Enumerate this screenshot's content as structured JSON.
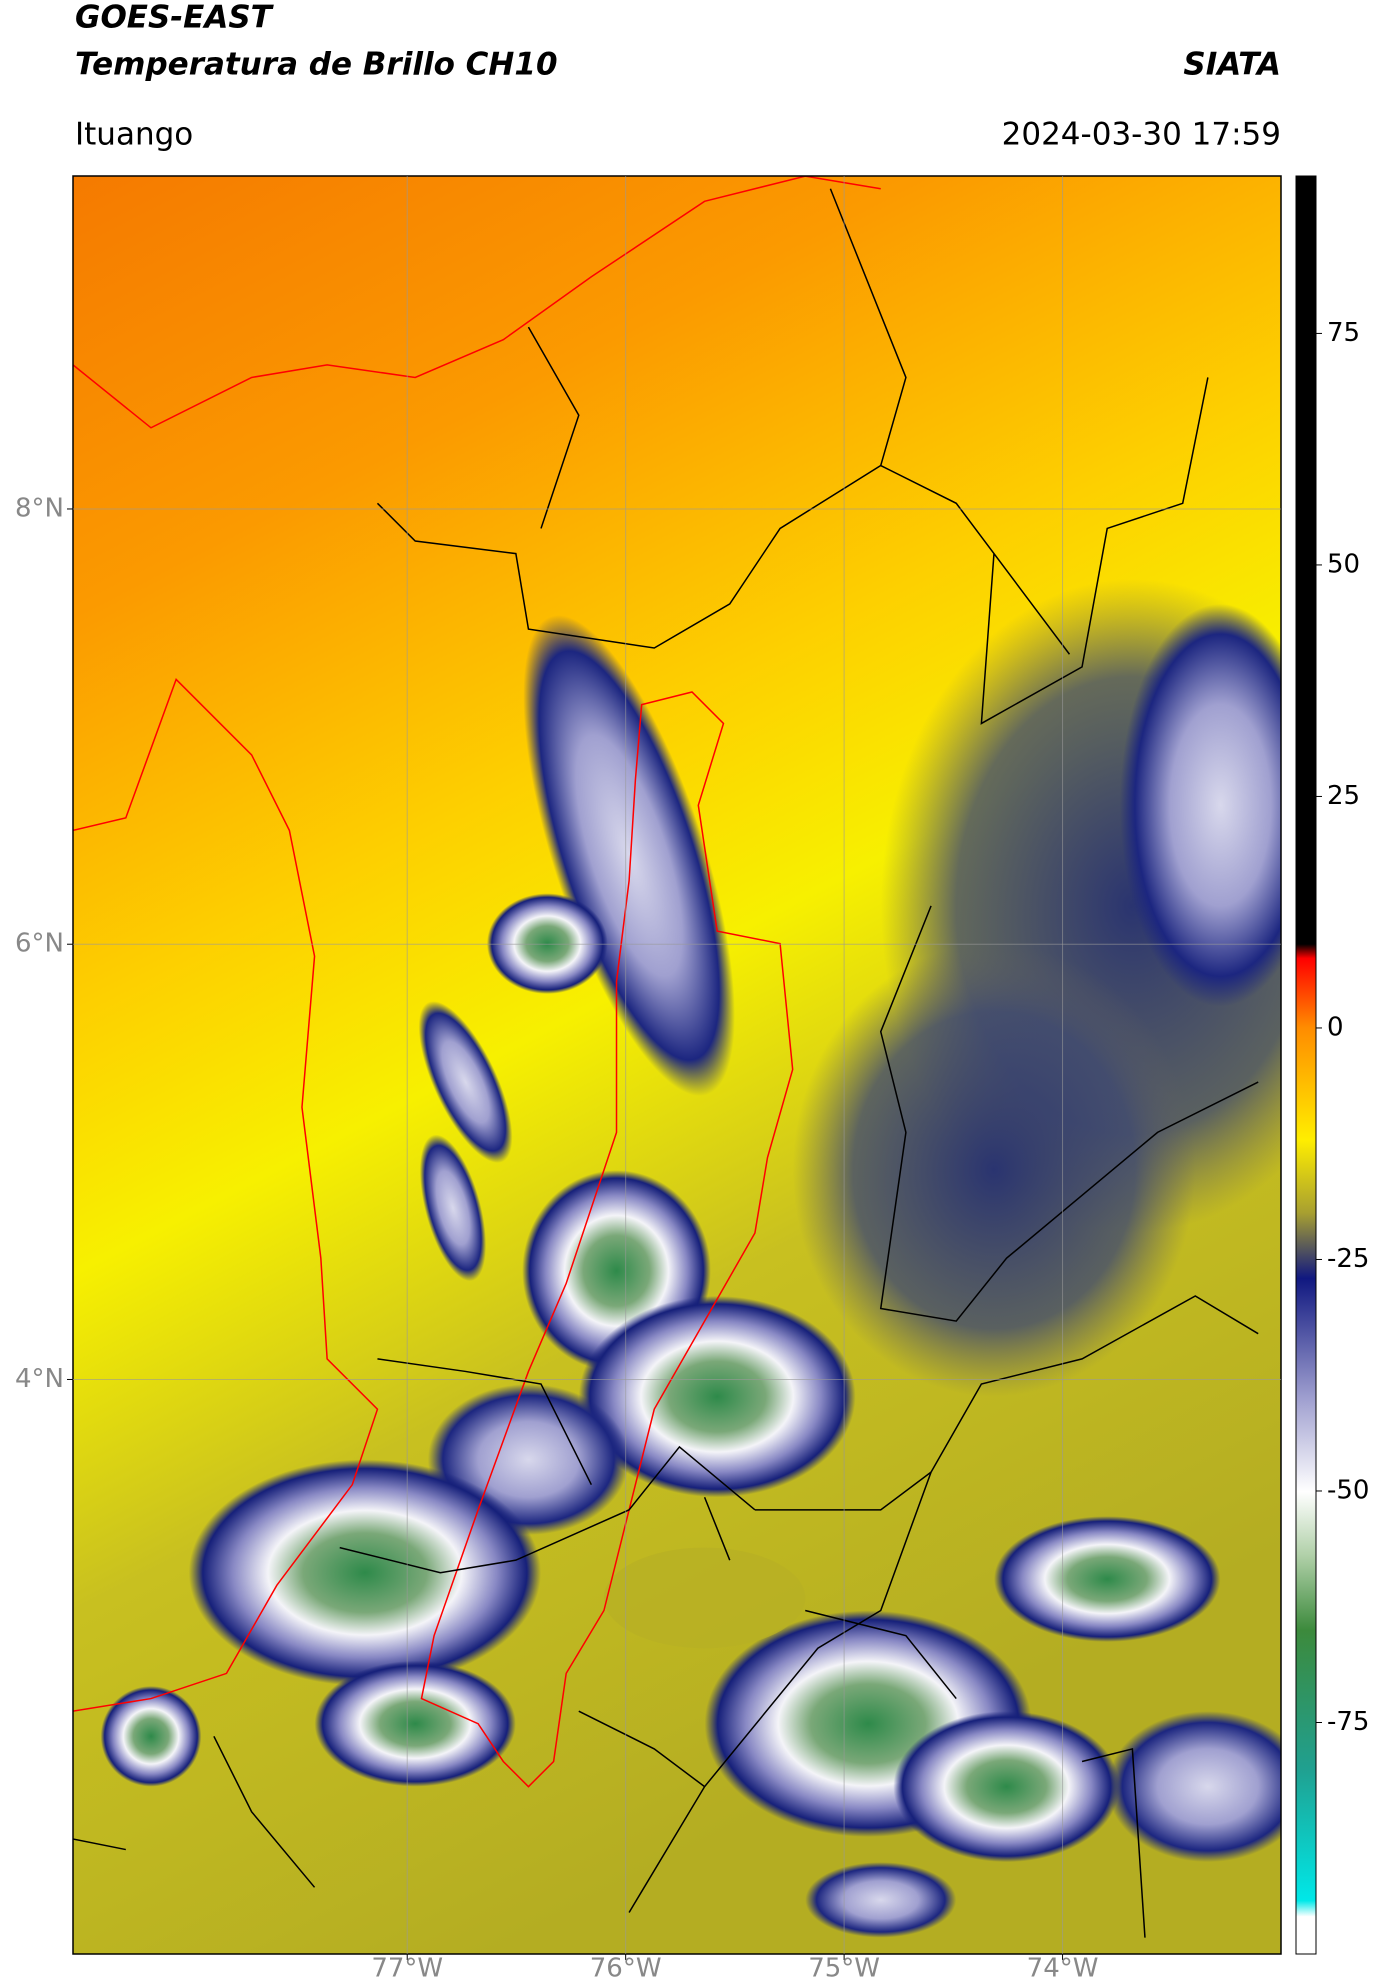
{
  "header": {
    "title": "GOES-EAST",
    "subtitle": "Temperatura de Brillo CH10",
    "source": "SIATA",
    "location": "Ituango",
    "datetime": "2024-03-30 17:59"
  },
  "map": {
    "lat_range": [
      1.36,
      9.53
    ],
    "lon_range": [
      -78.53,
      -73.0
    ],
    "lat_ticks": [
      {
        "value": 8,
        "label": "8°N"
      },
      {
        "value": 6,
        "label": "6°N"
      },
      {
        "value": 4,
        "label": "4°N"
      }
    ],
    "lon_ticks": [
      {
        "value": -77,
        "label": "77°W"
      },
      {
        "value": -76,
        "label": "76°W"
      },
      {
        "value": -75,
        "label": "75°W"
      },
      {
        "value": -74,
        "label": "74°W"
      }
    ],
    "grid": true
  },
  "colorbar": {
    "range": [
      -100,
      92
    ],
    "ticks": [
      75,
      50,
      25,
      0,
      -25,
      -50,
      -75
    ]
  }
}
